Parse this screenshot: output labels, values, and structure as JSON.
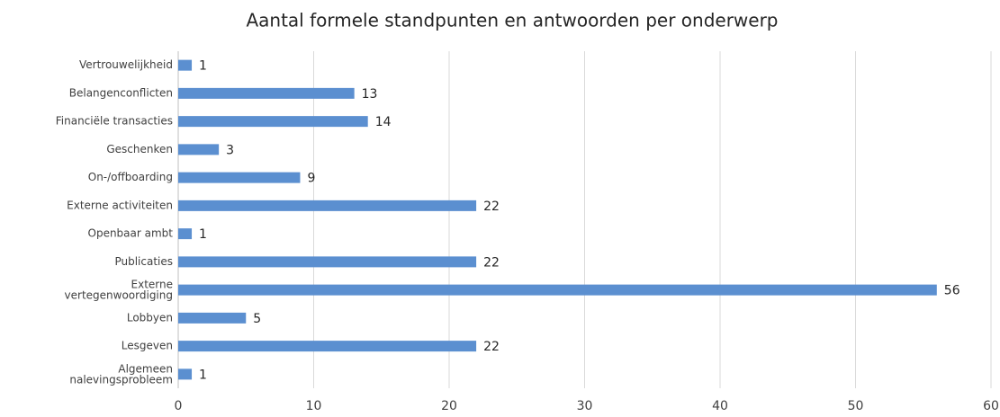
{
  "chart_data": {
    "type": "bar",
    "orientation": "horizontal",
    "title": "Aantal formele standpunten en antwoorden per onderwerp",
    "categories": [
      "Vertrouwelijkheid",
      "Belangenconflicten",
      "Financiële transacties",
      "Geschenken",
      "On-/offboarding",
      "Externe activiteiten",
      "Openbaar ambt",
      "Publicaties",
      "Externe vertegenwoordiging",
      "Lobbyen",
      "Lesgeven",
      "Algemeen nalevingsprobleem"
    ],
    "values": [
      1,
      13,
      14,
      3,
      9,
      22,
      1,
      22,
      56,
      5,
      22,
      1
    ],
    "color": "#5b8fd0",
    "xlim": [
      0,
      60
    ],
    "xticks": [
      0,
      10,
      20,
      30,
      40,
      50,
      60
    ],
    "grid": true
  }
}
